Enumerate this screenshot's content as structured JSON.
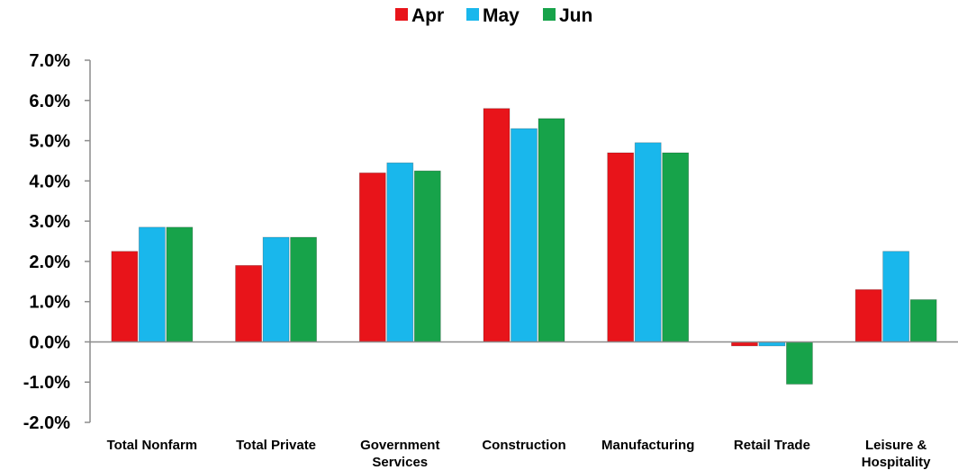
{
  "chart_data": {
    "type": "bar",
    "title": "",
    "xlabel": "",
    "ylabel": "",
    "ylim": [
      -2.0,
      7.0
    ],
    "y_ticks": [
      "7.0%",
      "6.0%",
      "5.0%",
      "4.0%",
      "3.0%",
      "2.0%",
      "1.0%",
      "0.0%",
      "-1.0%",
      "-2.0%"
    ],
    "grid": false,
    "legend_position": "top-center",
    "categories": [
      [
        "Total Nonfarm"
      ],
      [
        "Total Private"
      ],
      [
        "Government",
        "Services"
      ],
      [
        "Construction"
      ],
      [
        "Manufacturing"
      ],
      [
        "Retail Trade"
      ],
      [
        "Leisure &",
        "Hospitality"
      ]
    ],
    "series": [
      {
        "name": "Apr",
        "color": "#e8141a",
        "values": [
          2.25,
          1.9,
          4.2,
          5.8,
          4.7,
          -0.1,
          1.3
        ]
      },
      {
        "name": "May",
        "color": "#19b7ec",
        "values": [
          2.85,
          2.6,
          4.45,
          5.3,
          4.95,
          -0.1,
          2.25
        ]
      },
      {
        "name": "Jun",
        "color": "#17a34a",
        "values": [
          2.85,
          2.6,
          4.25,
          5.55,
          4.7,
          -1.05,
          1.05
        ]
      }
    ]
  }
}
